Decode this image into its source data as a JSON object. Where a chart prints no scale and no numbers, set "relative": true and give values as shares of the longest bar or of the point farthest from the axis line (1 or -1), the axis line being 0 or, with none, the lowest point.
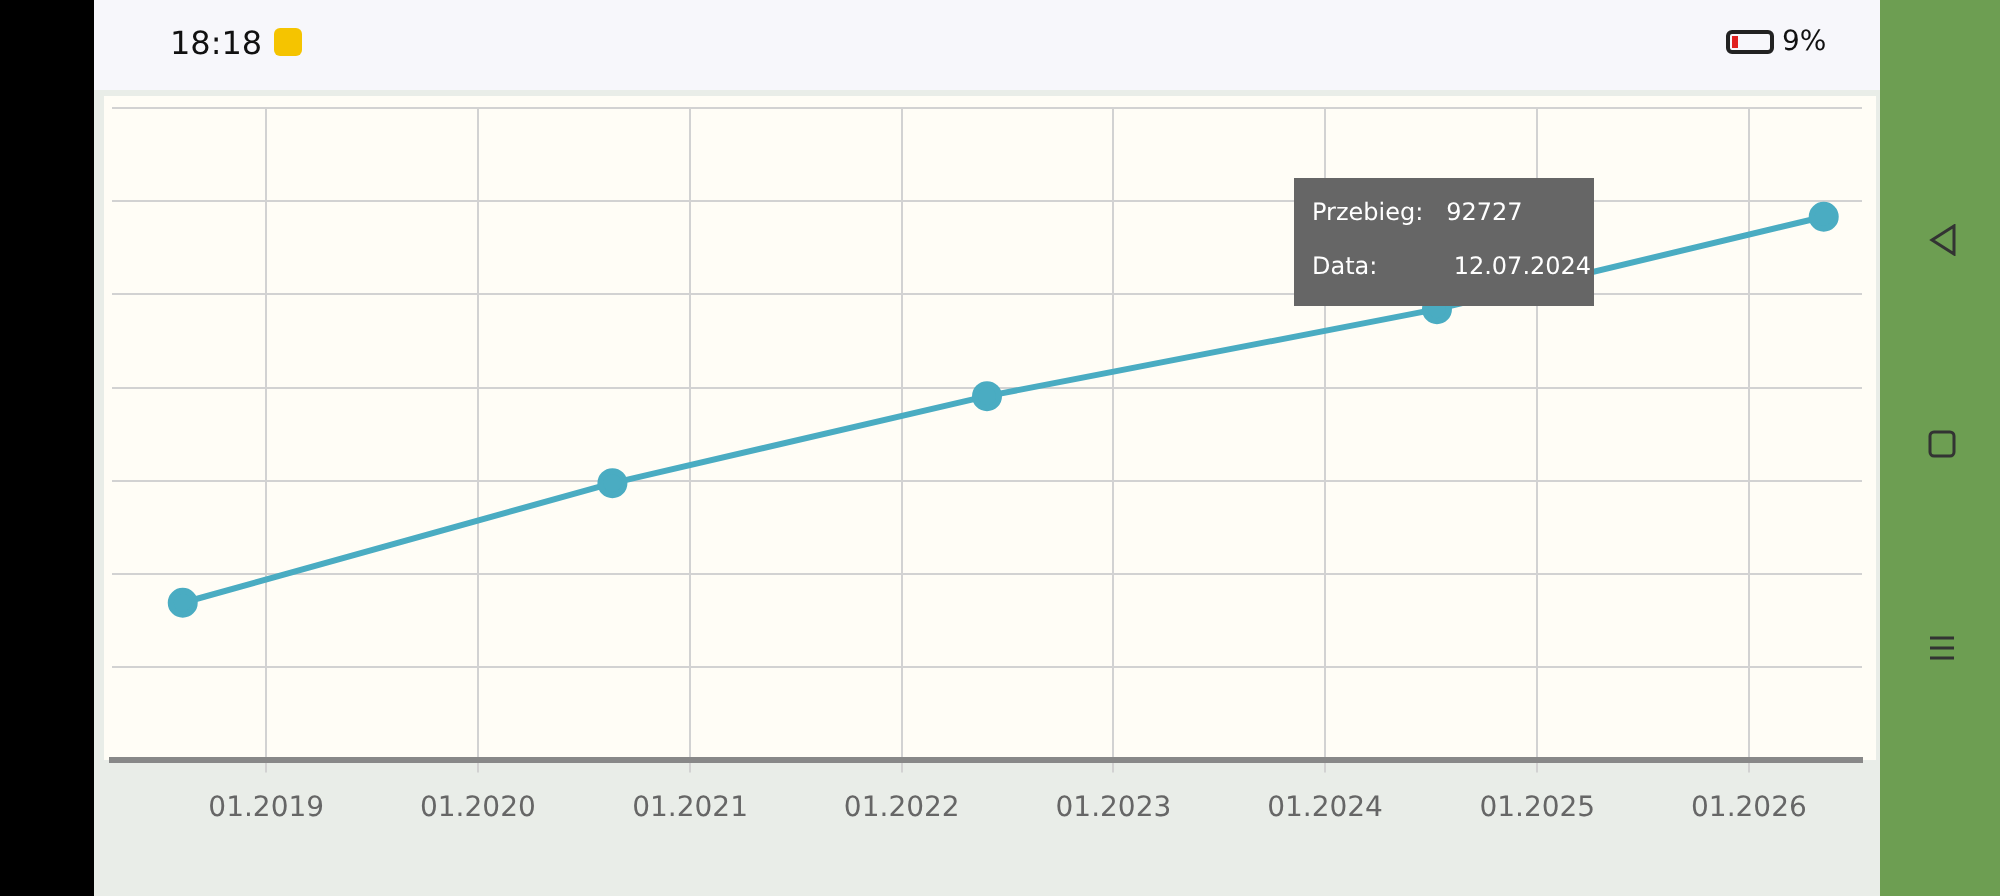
{
  "chart_data": {
    "type": "line",
    "relative": true,
    "x": [
      "2018-08-10",
      "2020-08-20",
      "2022-05-28",
      "2024-07-12",
      "2026-05-10"
    ],
    "series": [
      {
        "color": "#4aacc2",
        "values": [
          0.29,
          0.51,
          0.67,
          0.83,
          1
        ]
      }
    ],
    "xlim": [
      "2018-04-10",
      "2026-07-15"
    ],
    "xticks": [
      {
        "value": "2019-01",
        "label": "01.2019"
      },
      {
        "value": "2020-01",
        "label": "01.2020"
      },
      {
        "value": "2021-01",
        "label": "01.2021"
      },
      {
        "value": "2022-01",
        "label": "01.2022"
      },
      {
        "value": "2023-01",
        "label": "01.2023"
      },
      {
        "value": "2024-01",
        "label": "01.2024"
      },
      {
        "value": "2025-01",
        "label": "01.2025"
      },
      {
        "value": "2026-01",
        "label": "01.2026"
      }
    ],
    "grid": true,
    "marker": "circle",
    "line_style": "solid",
    "legend": false,
    "annotations": [
      "Przebieg:   92727",
      "Data:          12.07.2024",
      "18:18",
      "9%"
    ]
  }
}
